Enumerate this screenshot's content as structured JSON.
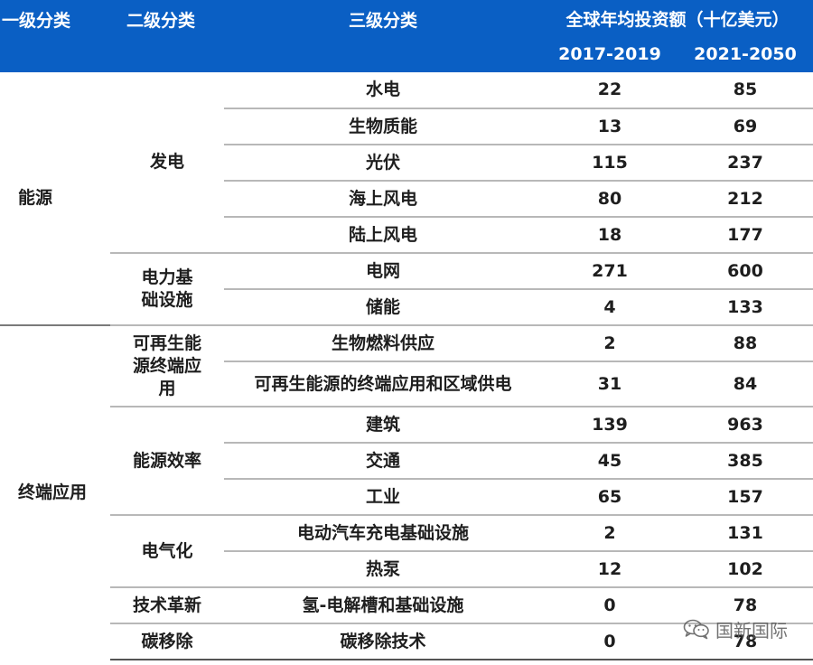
{
  "header": {
    "col1": "一级分类",
    "col2": "二级分类",
    "col3": "三级分类",
    "col45": "全球年均投资额（十亿美元）",
    "year1": "2017-2019",
    "year2": "2021-2050"
  },
  "groups": [
    {
      "label": "能源"
    },
    {
      "label": "终端应用"
    }
  ],
  "subgroups": [
    {
      "label": "发电"
    },
    {
      "label": "电力基础设施"
    },
    {
      "label": "可再生能源终端应用"
    },
    {
      "label": "能源效率"
    },
    {
      "label": "电气化"
    },
    {
      "label": "技术革新"
    },
    {
      "label": "碳移除"
    }
  ],
  "rows": [
    {
      "item": "水电",
      "v2017": "22",
      "v2021": "85"
    },
    {
      "item": "生物质能",
      "v2017": "13",
      "v2021": "69"
    },
    {
      "item": "光伏",
      "v2017": "115",
      "v2021": "237"
    },
    {
      "item": "海上风电",
      "v2017": "80",
      "v2021": "212"
    },
    {
      "item": "陆上风电",
      "v2017": "18",
      "v2021": "177"
    },
    {
      "item": "电网",
      "v2017": "271",
      "v2021": "600"
    },
    {
      "item": "储能",
      "v2017": "4",
      "v2021": "133"
    },
    {
      "item": "生物燃料供应",
      "v2017": "2",
      "v2021": "88"
    },
    {
      "item": "可再生能源的终端应用和区域供电",
      "v2017": "31",
      "v2021": "84"
    },
    {
      "item": "建筑",
      "v2017": "139",
      "v2021": "963"
    },
    {
      "item": "交通",
      "v2017": "45",
      "v2021": "385"
    },
    {
      "item": "工业",
      "v2017": "65",
      "v2021": "157"
    },
    {
      "item": "电动汽车充电基础设施",
      "v2017": "2",
      "v2021": "131"
    },
    {
      "item": "热泵",
      "v2017": "12",
      "v2021": "102"
    },
    {
      "item": "氢-电解槽和基础设施",
      "v2017": "0",
      "v2021": "78"
    },
    {
      "item": "碳移除技术",
      "v2017": "0",
      "v2021": "78"
    }
  ],
  "watermark": {
    "text": "国新国际",
    "icon": "wechat-icon"
  },
  "colors": {
    "header_bg": "#0a5fc4",
    "header_text": "#ffffff",
    "body_text": "#1e1e1e",
    "rule": "#b8b8b8"
  }
}
